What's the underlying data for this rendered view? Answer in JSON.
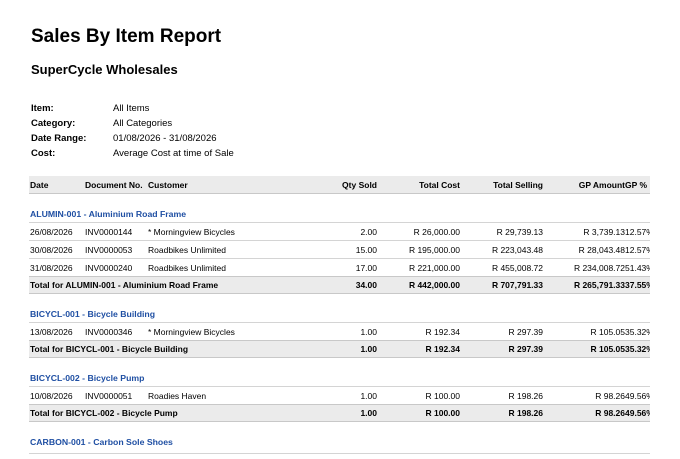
{
  "report": {
    "title": "Sales By Item Report",
    "company": "SuperCycle Wholesales"
  },
  "filters": [
    {
      "label": "Item:",
      "value": "All Items"
    },
    {
      "label": "Category:",
      "value": "All Categories"
    },
    {
      "label": "Date Range:",
      "value": "01/08/2026 - 31/08/2026"
    },
    {
      "label": "Cost:",
      "value": "Average Cost at time of Sale"
    }
  ],
  "columns": {
    "date": "Date",
    "doc": "Document No.",
    "customer": "Customer",
    "qty": "Qty Sold",
    "cost": "Total Cost",
    "selling": "Total Selling",
    "gp": "GP Amount",
    "gp_pct": "GP %"
  },
  "groups": [
    {
      "header": "ALUMIN-001 - Aluminium Road Frame",
      "rows": [
        {
          "date": "26/08/2026",
          "doc": "INV0000144",
          "customer": "* Morningview Bicycles",
          "qty": "2.00",
          "cost": "R 26,000.00",
          "selling": "R 29,739.13",
          "gp": "R 3,739.13",
          "gp_pct": "12.57%"
        },
        {
          "date": "30/08/2026",
          "doc": "INV0000053",
          "customer": "Roadbikes Unlimited",
          "qty": "15.00",
          "cost": "R 195,000.00",
          "selling": "R 223,043.48",
          "gp": "R 28,043.48",
          "gp_pct": "12.57%"
        },
        {
          "date": "31/08/2026",
          "doc": "INV0000240",
          "customer": "Roadbikes Unlimited",
          "qty": "17.00",
          "cost": "R 221,000.00",
          "selling": "R 455,008.72",
          "gp": "R 234,008.72",
          "gp_pct": "51.43%"
        }
      ],
      "total": {
        "label": "Total for ALUMIN-001 - Aluminium Road Frame",
        "qty": "34.00",
        "cost": "R 442,000.00",
        "selling": "R 707,791.33",
        "gp": "R 265,791.33",
        "gp_pct": "37.55%"
      }
    },
    {
      "header": "BICYCL-001 - Bicycle Building",
      "rows": [
        {
          "date": "13/08/2026",
          "doc": "INV0000346",
          "customer": "* Morningview Bicycles",
          "qty": "1.00",
          "cost": "R 192.34",
          "selling": "R 297.39",
          "gp": "R 105.05",
          "gp_pct": "35.32%"
        }
      ],
      "total": {
        "label": "Total for BICYCL-001 - Bicycle Building",
        "qty": "1.00",
        "cost": "R 192.34",
        "selling": "R 297.39",
        "gp": "R 105.05",
        "gp_pct": "35.32%"
      }
    },
    {
      "header": "BICYCL-002 - Bicycle Pump",
      "rows": [
        {
          "date": "10/08/2026",
          "doc": "INV0000051",
          "customer": "Roadies Haven",
          "qty": "1.00",
          "cost": "R 100.00",
          "selling": "R 198.26",
          "gp": "R 98.26",
          "gp_pct": "49.56%"
        }
      ],
      "total": {
        "label": "Total for BICYCL-002 - Bicycle Pump",
        "qty": "1.00",
        "cost": "R 100.00",
        "selling": "R 198.26",
        "gp": "R 98.26",
        "gp_pct": "49.56%"
      }
    },
    {
      "header": "CARBON-001 - Carbon Sole Shoes",
      "rows": [],
      "total": null
    }
  ]
}
